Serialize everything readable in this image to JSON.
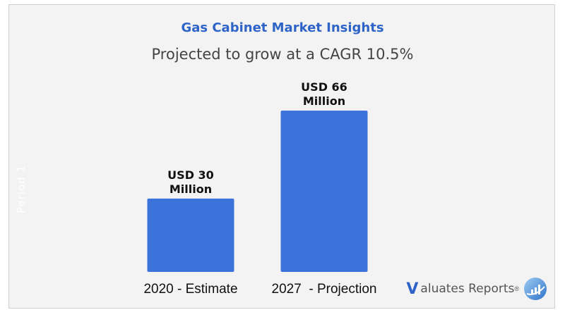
{
  "title": "Gas Cabinet Market Insights",
  "subtitle": "Projected to grow at a CAGR 10.5%",
  "watermark": "Period 1",
  "logo": {
    "v": "V",
    "text": "aluates Reports",
    "reg": "®",
    "icon": "chart-globe-icon"
  },
  "colors": {
    "bar": "#3c73da",
    "title": "#2e64c8",
    "background": "#f3f3f3"
  },
  "chart_data": {
    "type": "bar",
    "title": "Gas Cabinet Market Insights",
    "subtitle": "Projected to grow at a CAGR 10.5%",
    "categories": [
      "2020 - Estimate",
      "2027  - Projection"
    ],
    "values": [
      30,
      66
    ],
    "data_labels": [
      [
        "USD 30",
        "Million"
      ],
      [
        "USD 66",
        "Million"
      ]
    ],
    "unit": "USD Million",
    "xlabel": "",
    "ylabel": "",
    "ylim": [
      0,
      66
    ],
    "grid": false,
    "legend": "none"
  }
}
